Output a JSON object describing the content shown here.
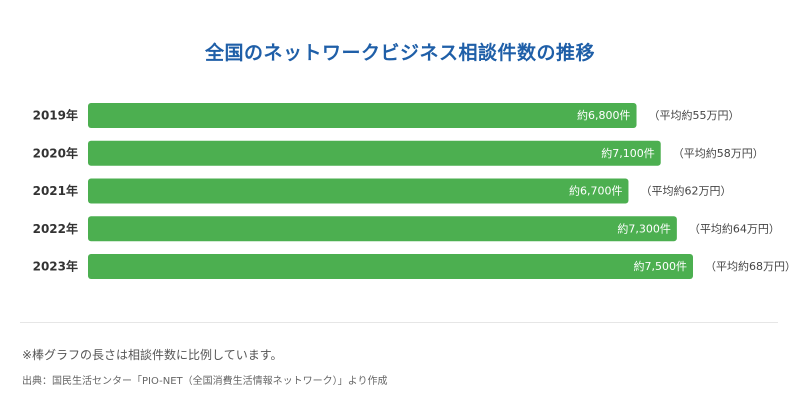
{
  "title": "全国のネットワークビジネス相談件数の推移",
  "footnote": "※棒グラフの長さは相談件数に比例しています。",
  "source": "出典：国民生活センター「PIO-NET（全国消費生活情報ネットワーク）」より作成",
  "colors": {
    "bar": "#4caf50",
    "title": "#1f5fa8"
  },
  "chart_data": {
    "type": "bar",
    "orientation": "horizontal",
    "categories": [
      "2019年",
      "2020年",
      "2021年",
      "2022年",
      "2023年"
    ],
    "values": [
      6800,
      7100,
      6700,
      7300,
      7500
    ],
    "value_labels": [
      "約6,800件",
      "約7,100件",
      "約6,700件",
      "約7,300件",
      "約7,500件"
    ],
    "annotations": [
      "（平均約55万円）",
      "（平均約58万円）",
      "（平均約62万円）",
      "（平均約64万円）",
      "（平均約68万円）"
    ],
    "title": "全国のネットワークビジネス相談件数の推移",
    "xlabel": "",
    "ylabel": "",
    "grid": false
  }
}
